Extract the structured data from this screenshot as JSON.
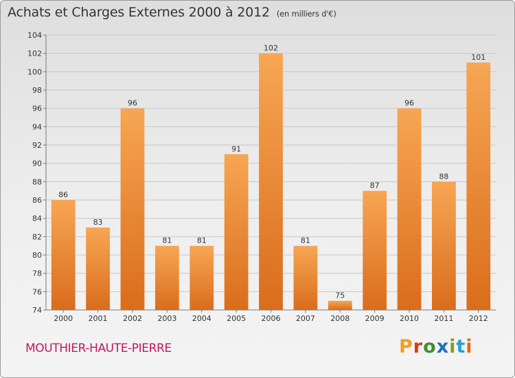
{
  "header": {
    "title": "Achats et Charges Externes 2000 à 2012",
    "subtitle": "(en milliers d'€)"
  },
  "footer": {
    "location": "MOUTHIER-HAUTE-PIERRE",
    "logo_text": "Proxiti"
  },
  "colors": {
    "bar_light": "#f7a654",
    "bar_dark": "#d96d1c",
    "location_text": "#c0185a",
    "logo_letters": [
      "#f0a21c",
      "#d83b1e",
      "#3f8f2f",
      "#1f6fc0",
      "#8a9a1c",
      "#2a9fd6",
      "#e06a1a"
    ]
  },
  "chart_data": {
    "type": "bar",
    "categories": [
      "2000",
      "2001",
      "2002",
      "2003",
      "2004",
      "2005",
      "2006",
      "2007",
      "2008",
      "2009",
      "2010",
      "2011",
      "2012"
    ],
    "values": [
      86,
      83,
      96,
      81,
      81,
      91,
      102,
      81,
      75,
      87,
      96,
      88,
      101
    ],
    "title": "Achats et Charges Externes 2000 à 2012",
    "ylim": [
      74,
      104
    ],
    "yticks": [
      74,
      76,
      78,
      80,
      82,
      84,
      86,
      88,
      90,
      92,
      94,
      96,
      98,
      100,
      102,
      104
    ],
    "grid": true,
    "data_labels": true
  }
}
